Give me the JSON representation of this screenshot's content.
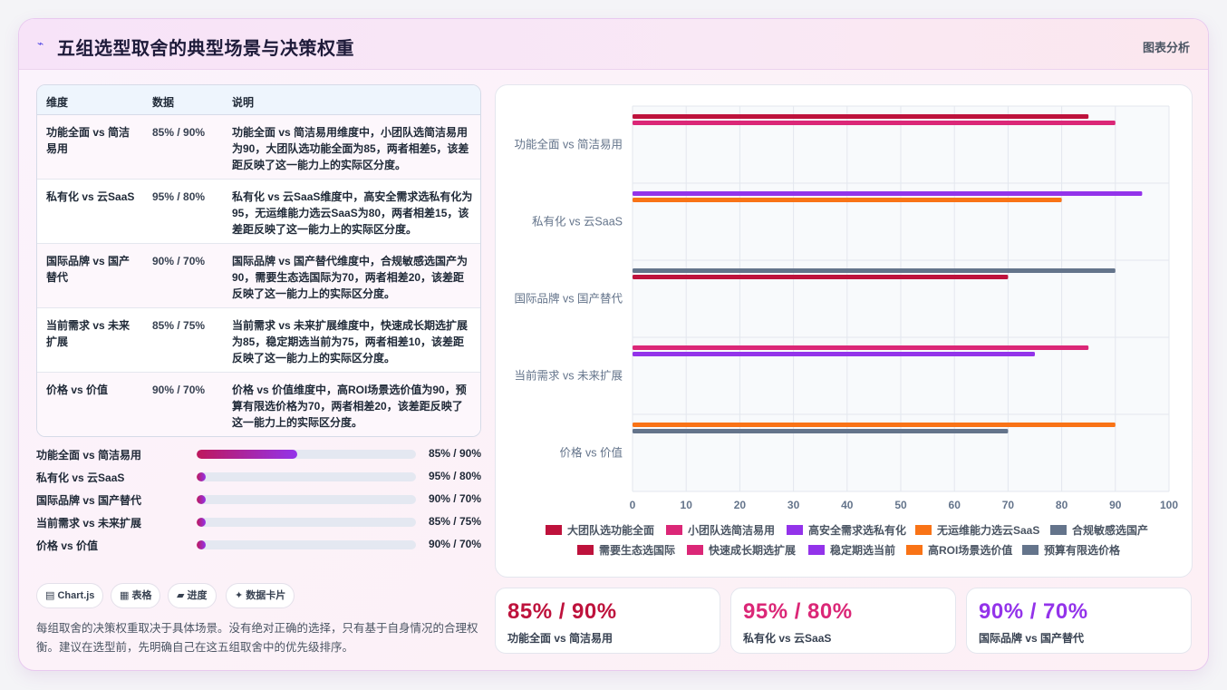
{
  "header": {
    "title": "五组选型取舍的典型场景与决策权重",
    "right_label": "图表分析"
  },
  "table": {
    "headers": [
      "维度",
      "数据",
      "说明"
    ],
    "rows": [
      {
        "dim": "功能全面 vs 简洁易用",
        "data": "85% / 90%",
        "desc": "功能全面 vs 简洁易用维度中，小团队选简洁易用为90，大团队选功能全面为85，两者相差5，该差距反映了这一能力上的实际区分度。"
      },
      {
        "dim": "私有化 vs 云SaaS",
        "data": "95% / 80%",
        "desc": "私有化 vs 云SaaS维度中，高安全需求选私有化为95，无运维能力选云SaaS为80，两者相差15，该差距反映了这一能力上的实际区分度。"
      },
      {
        "dim": "国际品牌 vs 国产替代",
        "data": "90% / 70%",
        "desc": "国际品牌 vs 国产替代维度中，合规敏感选国产为90，需要生态选国际为70，两者相差20，该差距反映了这一能力上的实际区分度。"
      },
      {
        "dim": "当前需求 vs 未来扩展",
        "data": "85% / 75%",
        "desc": "当前需求 vs 未来扩展维度中，快速成长期选扩展为85，稳定期选当前为75，两者相差10，该差距反映了这一能力上的实际区分度。"
      },
      {
        "dim": "价格 vs 价值",
        "data": "90% / 70%",
        "desc": "价格 vs 价值维度中，高ROI场景选价值为90，预算有限选价格为70，两者相差20，该差距反映了这一能力上的实际区分度。"
      }
    ]
  },
  "progress": [
    {
      "label": "功能全面 vs 简洁易用",
      "value": "85% / 90%",
      "fill": 0.46
    },
    {
      "label": "私有化 vs 云SaaS",
      "value": "95% / 80%",
      "fill": 0.04
    },
    {
      "label": "国际品牌 vs 国产替代",
      "value": "90% / 70%",
      "fill": 0.04
    },
    {
      "label": "当前需求 vs 未来扩展",
      "value": "85% / 75%",
      "fill": 0.04
    },
    {
      "label": "价格 vs 价值",
      "value": "90% / 70%",
      "fill": 0.04
    }
  ],
  "chips": [
    {
      "icon": "▤",
      "label": "Chart.js"
    },
    {
      "icon": "▦",
      "label": "表格"
    },
    {
      "icon": "▰",
      "label": "进度"
    },
    {
      "icon": "✦",
      "label": "数据卡片"
    }
  ],
  "note": "每组取舍的决策权重取决于具体场景。没有绝对正确的选择，只有基于自身情况的合理权衡。建议在选型前，先明确自己在这五组取舍中的优先级排序。",
  "stats": [
    {
      "value": "85% / 90%",
      "label": "功能全面 vs 简洁易用",
      "color": "#be123c"
    },
    {
      "value": "95% / 80%",
      "label": "私有化 vs 云SaaS",
      "color": "#db2777"
    },
    {
      "value": "90% / 70%",
      "label": "国际品牌 vs 国产替代",
      "color": "#9333ea"
    }
  ],
  "chart_data": {
    "type": "bar",
    "orientation": "horizontal",
    "categories": [
      "功能全面 vs 简洁易用",
      "私有化 vs 云SaaS",
      "国际品牌 vs 国产替代",
      "当前需求 vs 未来扩展",
      "价格 vs 价值"
    ],
    "xlim": [
      0,
      100
    ],
    "xticks": [
      0,
      10,
      20,
      30,
      40,
      50,
      60,
      70,
      80,
      90,
      100
    ],
    "grid": true,
    "legend_position": "bottom",
    "series": [
      {
        "name": "大团队选功能全面",
        "color": "#be123c",
        "category": 0,
        "value": 85
      },
      {
        "name": "小团队选简洁易用",
        "color": "#db2777",
        "category": 0,
        "value": 90
      },
      {
        "name": "高安全需求选私有化",
        "color": "#9333ea",
        "category": 1,
        "value": 95
      },
      {
        "name": "无运维能力选云SaaS",
        "color": "#f97316",
        "category": 1,
        "value": 80
      },
      {
        "name": "合规敏感选国产",
        "color": "#64748b",
        "category": 2,
        "value": 90
      },
      {
        "name": "需要生态选国际",
        "color": "#be123c",
        "category": 2,
        "value": 70
      },
      {
        "name": "快速成长期选扩展",
        "color": "#db2777",
        "category": 3,
        "value": 85
      },
      {
        "name": "稳定期选当前",
        "color": "#9333ea",
        "category": 3,
        "value": 75
      },
      {
        "name": "高ROI场景选价值",
        "color": "#f97316",
        "category": 4,
        "value": 90
      },
      {
        "name": "预算有限选价格",
        "color": "#64748b",
        "category": 4,
        "value": 70
      }
    ]
  }
}
